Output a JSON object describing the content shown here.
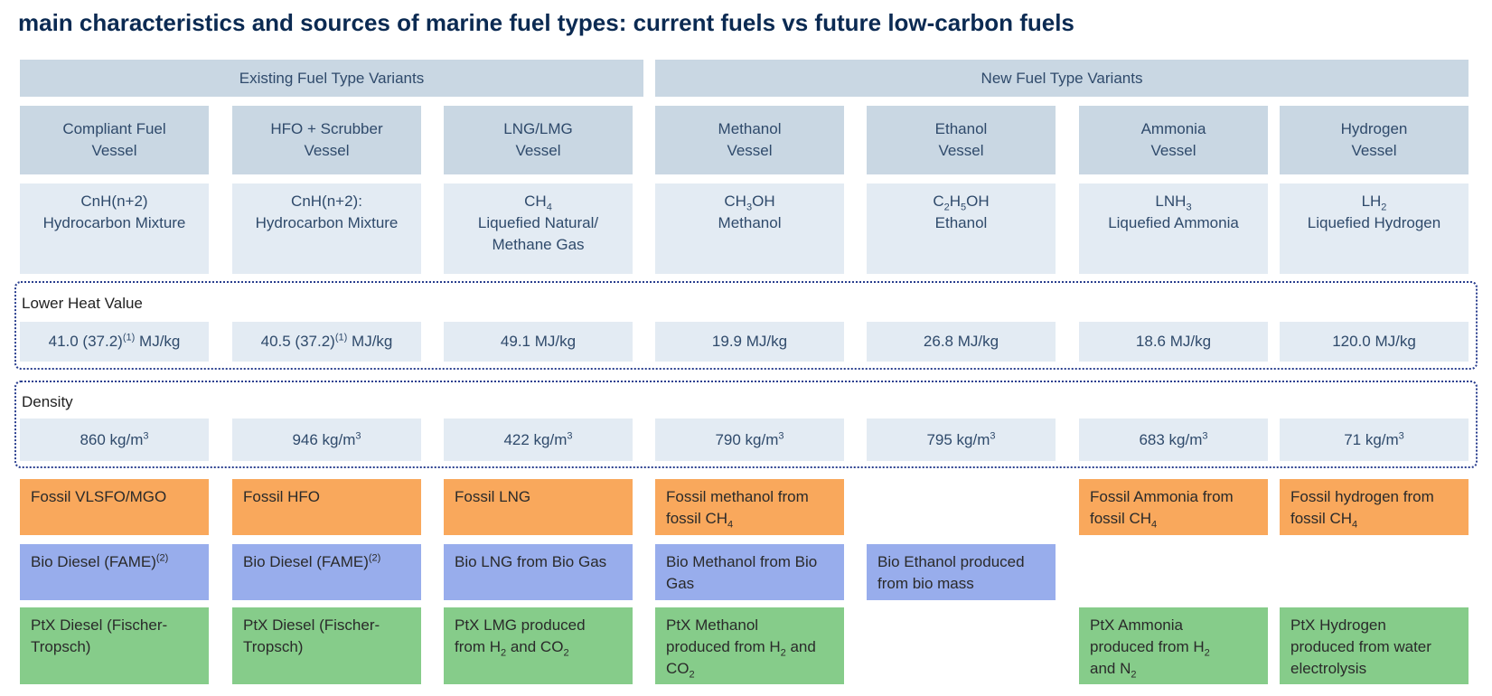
{
  "title": "main characteristics and sources of marine fuel types: current fuels vs future low-carbon fuels",
  "groups": [
    "Existing Fuel Type Variants",
    "New Fuel Type Variants"
  ],
  "vessels": [
    [
      "Compliant Fuel",
      "Vessel"
    ],
    [
      "HFO + Scrubber",
      "Vessel"
    ],
    [
      "LNG/LMG",
      "Vessel"
    ],
    [
      "Methanol",
      "Vessel"
    ],
    [
      "Ethanol",
      "Vessel"
    ],
    [
      "Ammonia",
      "Vessel"
    ],
    [
      "Hydrogen",
      "Vessel"
    ]
  ],
  "formulas": [
    [
      [
        "CnH(n+2)"
      ],
      [
        "Hydrocarbon Mixture"
      ]
    ],
    [
      [
        "CnH(n+2):"
      ],
      [
        "Hydrocarbon Mixture"
      ]
    ],
    [
      [
        "CH",
        {
          "sub": "4"
        }
      ],
      [
        "Liquefied Natural/"
      ],
      [
        "Methane Gas"
      ]
    ],
    [
      [
        "CH",
        {
          "sub": "3"
        },
        "OH"
      ],
      [
        "Methanol"
      ]
    ],
    [
      [
        "C",
        {
          "sub": "2"
        },
        "H",
        {
          "sub": "5"
        },
        "OH"
      ],
      [
        "Ethanol"
      ]
    ],
    [
      [
        "LNH",
        {
          "sub": "3"
        }
      ],
      [
        "Liquefied Ammonia"
      ]
    ],
    [
      [
        "LH",
        {
          "sub": "2"
        }
      ],
      [
        "Liquefied Hydrogen"
      ]
    ]
  ],
  "lower_heat_value": {
    "label": "Lower Heat Value",
    "values": [
      [
        "41.0 (37.2)",
        {
          "sup": "(1)"
        },
        " MJ/kg"
      ],
      [
        "40.5 (37.2)",
        {
          "sup": "(1)"
        },
        " MJ/kg"
      ],
      [
        "49.1 MJ/kg"
      ],
      [
        "19.9 MJ/kg"
      ],
      [
        "26.8 MJ/kg"
      ],
      [
        "18.6 MJ/kg"
      ],
      [
        "120.0 MJ/kg"
      ]
    ]
  },
  "density": {
    "label": "Density",
    "values": [
      [
        "860 kg/m",
        {
          "sup": "3"
        }
      ],
      [
        "946 kg/m",
        {
          "sup": "3"
        }
      ],
      [
        "422 kg/m",
        {
          "sup": "3"
        }
      ],
      [
        "790 kg/m",
        {
          "sup": "3"
        }
      ],
      [
        "795 kg/m",
        {
          "sup": "3"
        }
      ],
      [
        "683 kg/m",
        {
          "sup": "3"
        }
      ],
      [
        "71 kg/m",
        {
          "sup": "3"
        }
      ]
    ]
  },
  "sources": [
    {
      "color": "#f9a85c",
      "cells": [
        [
          [
            "Fossil VLSFO/MGO"
          ]
        ],
        [
          [
            "Fossil HFO"
          ]
        ],
        [
          [
            "Fossil LNG"
          ]
        ],
        [
          [
            "Fossil methanol from"
          ],
          [
            "fossil CH",
            {
              "sub": "4"
            }
          ]
        ],
        null,
        [
          [
            "Fossil Ammonia from"
          ],
          [
            "fossil CH",
            {
              "sub": "4"
            }
          ]
        ],
        [
          [
            "Fossil hydrogen from"
          ],
          [
            "fossil CH",
            {
              "sub": "4"
            }
          ]
        ]
      ]
    },
    {
      "color": "#98adec",
      "cells": [
        [
          [
            "Bio Diesel (FAME)",
            {
              "sup": "(2)"
            }
          ]
        ],
        [
          [
            "Bio Diesel (FAME)",
            {
              "sup": "(2)"
            }
          ]
        ],
        [
          [
            "Bio LNG from Bio Gas"
          ]
        ],
        [
          [
            "Bio Methanol from Bio"
          ],
          [
            "Gas"
          ]
        ],
        [
          [
            "Bio Ethanol produced"
          ],
          [
            "from bio mass"
          ]
        ],
        null,
        null
      ]
    },
    {
      "color": "#86cc8a",
      "cells": [
        [
          [
            "PtX Diesel (Fischer-"
          ],
          [
            "Tropsch)"
          ]
        ],
        [
          [
            "PtX Diesel (Fischer-"
          ],
          [
            "Tropsch)"
          ]
        ],
        [
          [
            "PtX LMG produced"
          ],
          [
            "from H",
            {
              "sub": "2"
            },
            " and CO",
            {
              "sub": "2"
            }
          ]
        ],
        [
          [
            "PtX Methanol"
          ],
          [
            "produced from H",
            {
              "sub": "2"
            },
            " and"
          ],
          [
            "CO",
            {
              "sub": "2"
            }
          ]
        ],
        null,
        [
          [
            "PtX Ammonia"
          ],
          [
            "produced from H",
            {
              "sub": "2"
            }
          ],
          [
            "and N",
            {
              "sub": "2"
            }
          ]
        ],
        [
          [
            "PtX Hydrogen"
          ],
          [
            "produced from water"
          ],
          [
            "electrolysis"
          ]
        ]
      ]
    }
  ]
}
